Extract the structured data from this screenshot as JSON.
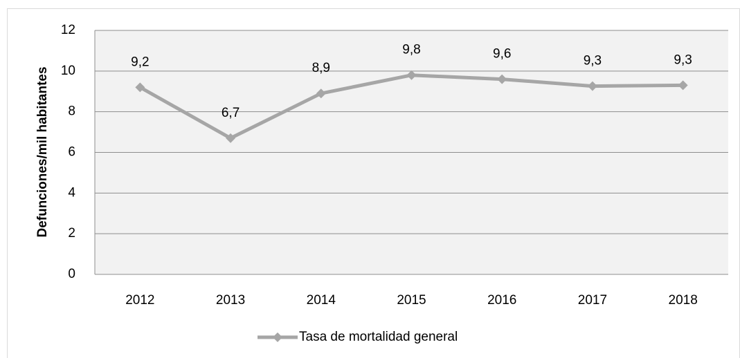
{
  "chart_data": {
    "type": "line",
    "ylabel": "Defunciones/mil habitantes",
    "categories": [
      "2012",
      "2013",
      "2014",
      "2015",
      "2016",
      "2017",
      "2018"
    ],
    "series": [
      {
        "name": "Tasa de mortalidad general",
        "color": "#a6a6a6",
        "values": [
          9.2,
          6.7,
          8.9,
          9.8,
          9.6,
          9.26,
          9.3
        ],
        "value_labels": [
          "9,2",
          "6,7",
          "8,9",
          "9,8",
          "9,6",
          "9,3",
          "9,3"
        ]
      }
    ],
    "ylim": [
      0,
      12
    ],
    "yticks": [
      0,
      2,
      4,
      6,
      8,
      10,
      12
    ],
    "grid": true,
    "legend": "bottom"
  }
}
